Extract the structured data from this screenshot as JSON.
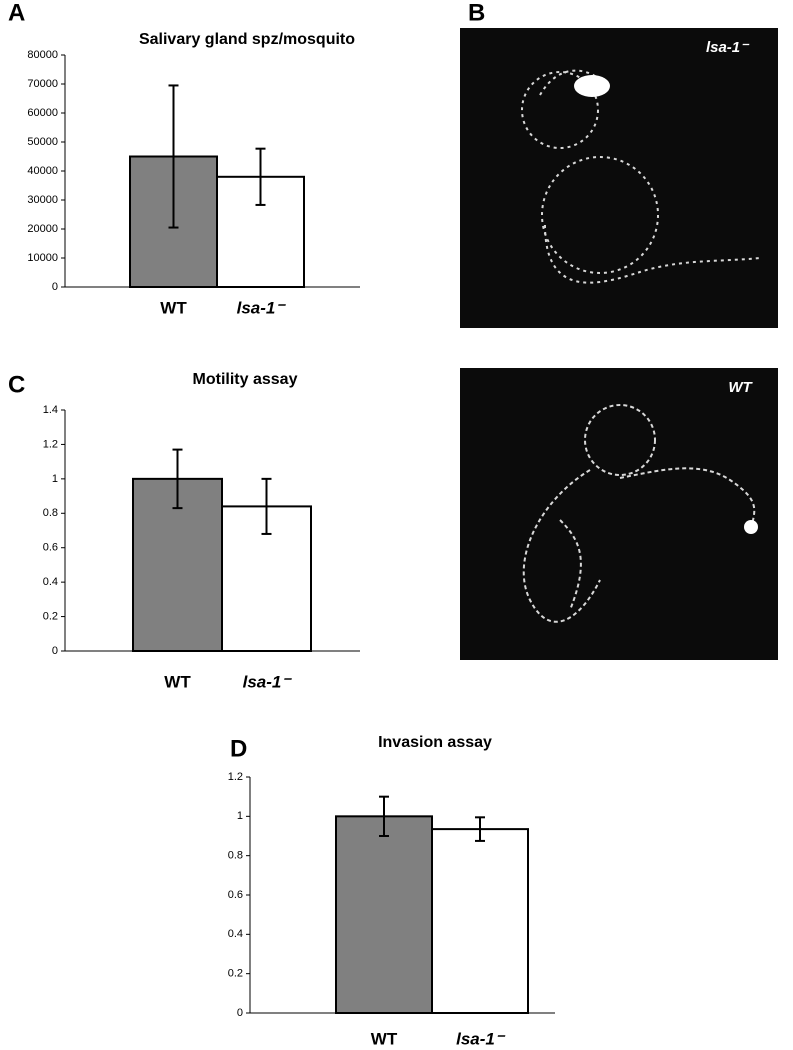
{
  "chart_data": [
    {
      "type": "bar",
      "panel": "A",
      "title": "Salivary gland spz/mosquito",
      "categories": [
        "WT",
        "lsa-1⁻"
      ],
      "values": [
        45000,
        38000
      ],
      "errors": [
        24500,
        9700
      ],
      "colors": [
        "#808080",
        "#ffffff"
      ],
      "ylim": [
        0,
        80000
      ],
      "yticks": [
        0,
        10000,
        20000,
        30000,
        40000,
        50000,
        60000,
        70000,
        80000
      ]
    },
    {
      "type": "bar",
      "panel": "C",
      "title": "Motility assay",
      "categories": [
        "WT",
        "lsa-1⁻"
      ],
      "values": [
        1.0,
        0.84
      ],
      "errors": [
        0.17,
        0.16
      ],
      "colors": [
        "#808080",
        "#ffffff"
      ],
      "ylim": [
        0,
        1.4
      ],
      "yticks": [
        0,
        0.2,
        0.4,
        0.6,
        0.8,
        1,
        1.2,
        1.4
      ]
    },
    {
      "type": "bar",
      "panel": "D",
      "title": "Invasion assay",
      "categories": [
        "WT",
        "lsa-1⁻"
      ],
      "values": [
        1.0,
        0.935
      ],
      "errors": [
        0.1,
        0.06
      ],
      "colors": [
        "#808080",
        "#ffffff"
      ],
      "ylim": [
        0,
        1.2
      ],
      "yticks": [
        0,
        0.2,
        0.4,
        0.6,
        0.8,
        1,
        1.2
      ]
    }
  ],
  "images": {
    "panel": "B",
    "labels": [
      "lsa-1⁻",
      "WT"
    ]
  }
}
